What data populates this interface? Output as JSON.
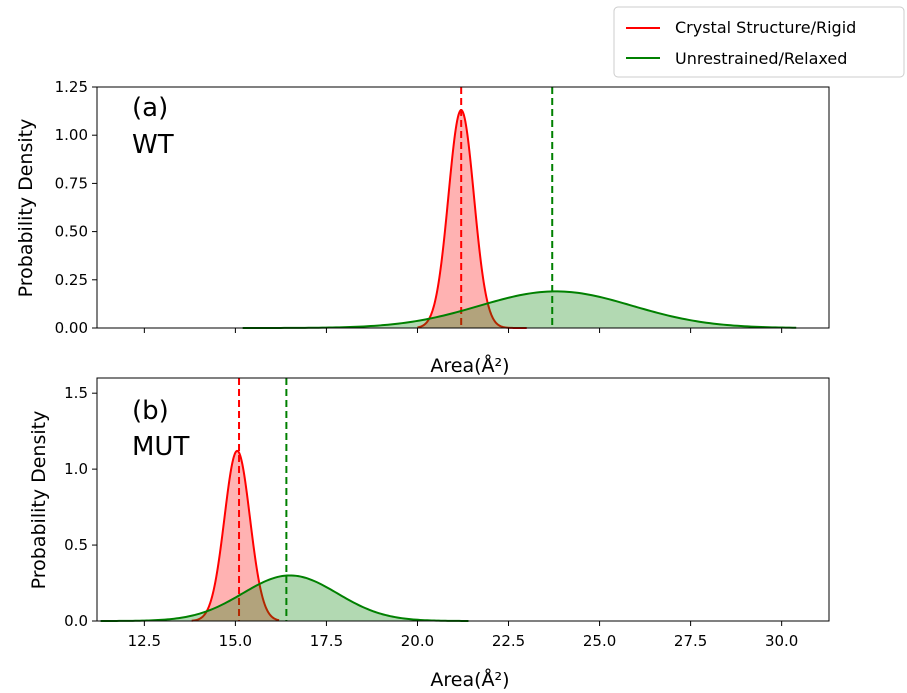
{
  "legend": {
    "placement": "top-right",
    "entries": [
      {
        "label": "Crystal Structure/Rigid",
        "color": "#ff0000"
      },
      {
        "label": "Unrestrained/Relaxed",
        "color": "#008000"
      }
    ]
  },
  "chart_data": [
    {
      "type": "area",
      "panel_label": "(a)",
      "panel_name": "WT",
      "xlabel": "Area(Å²)",
      "ylabel": "Probability Density",
      "xlim": [
        11.2,
        31.3
      ],
      "ylim": [
        0,
        1.25
      ],
      "yticks": [
        0.0,
        0.25,
        0.5,
        0.75,
        1.0,
        1.25
      ],
      "ytick_labels": [
        "0.00",
        "0.25",
        "0.50",
        "0.75",
        "1.00",
        "1.25"
      ],
      "xticks": [
        12.5,
        15.0,
        17.5,
        20.0,
        22.5,
        25.0,
        27.5,
        30.0
      ],
      "xtick_labels": [],
      "series": [
        {
          "name": "Crystal Structure/Rigid",
          "color": "#ff0000",
          "mean": 21.2,
          "std": 0.35,
          "peak": 1.13,
          "range": [
            20.0,
            23.0
          ],
          "vline": 21.2
        },
        {
          "name": "Unrestrained/Relaxed",
          "color": "#008000",
          "mean": 23.8,
          "std": 2.1,
          "peak": 0.19,
          "range": [
            15.2,
            30.4
          ],
          "vline": 23.7
        }
      ]
    },
    {
      "type": "area",
      "panel_label": "(b)",
      "panel_name": "MUT",
      "xlabel": "Area(Å²)",
      "ylabel": "Probability Density",
      "xlim": [
        11.2,
        31.3
      ],
      "ylim": [
        0,
        1.6
      ],
      "yticks": [
        0.0,
        0.5,
        1.0,
        1.5
      ],
      "ytick_labels": [
        "0.0",
        "0.5",
        "1.0",
        "1.5"
      ],
      "xticks": [
        12.5,
        15.0,
        17.5,
        20.0,
        22.5,
        25.0,
        27.5,
        30.0
      ],
      "xtick_labels": [
        "12.5",
        "15.0",
        "17.5",
        "20.0",
        "22.5",
        "25.0",
        "27.5",
        "30.0"
      ],
      "series": [
        {
          "name": "Crystal Structure/Rigid",
          "color": "#ff0000",
          "mean": 15.05,
          "std": 0.35,
          "peak": 1.12,
          "range": [
            13.8,
            16.2
          ],
          "vline": 15.1
        },
        {
          "name": "Unrestrained/Relaxed",
          "color": "#008000",
          "mean": 16.5,
          "std": 1.3,
          "peak": 0.3,
          "range": [
            11.3,
            21.4
          ],
          "vline": 16.4
        }
      ]
    }
  ]
}
